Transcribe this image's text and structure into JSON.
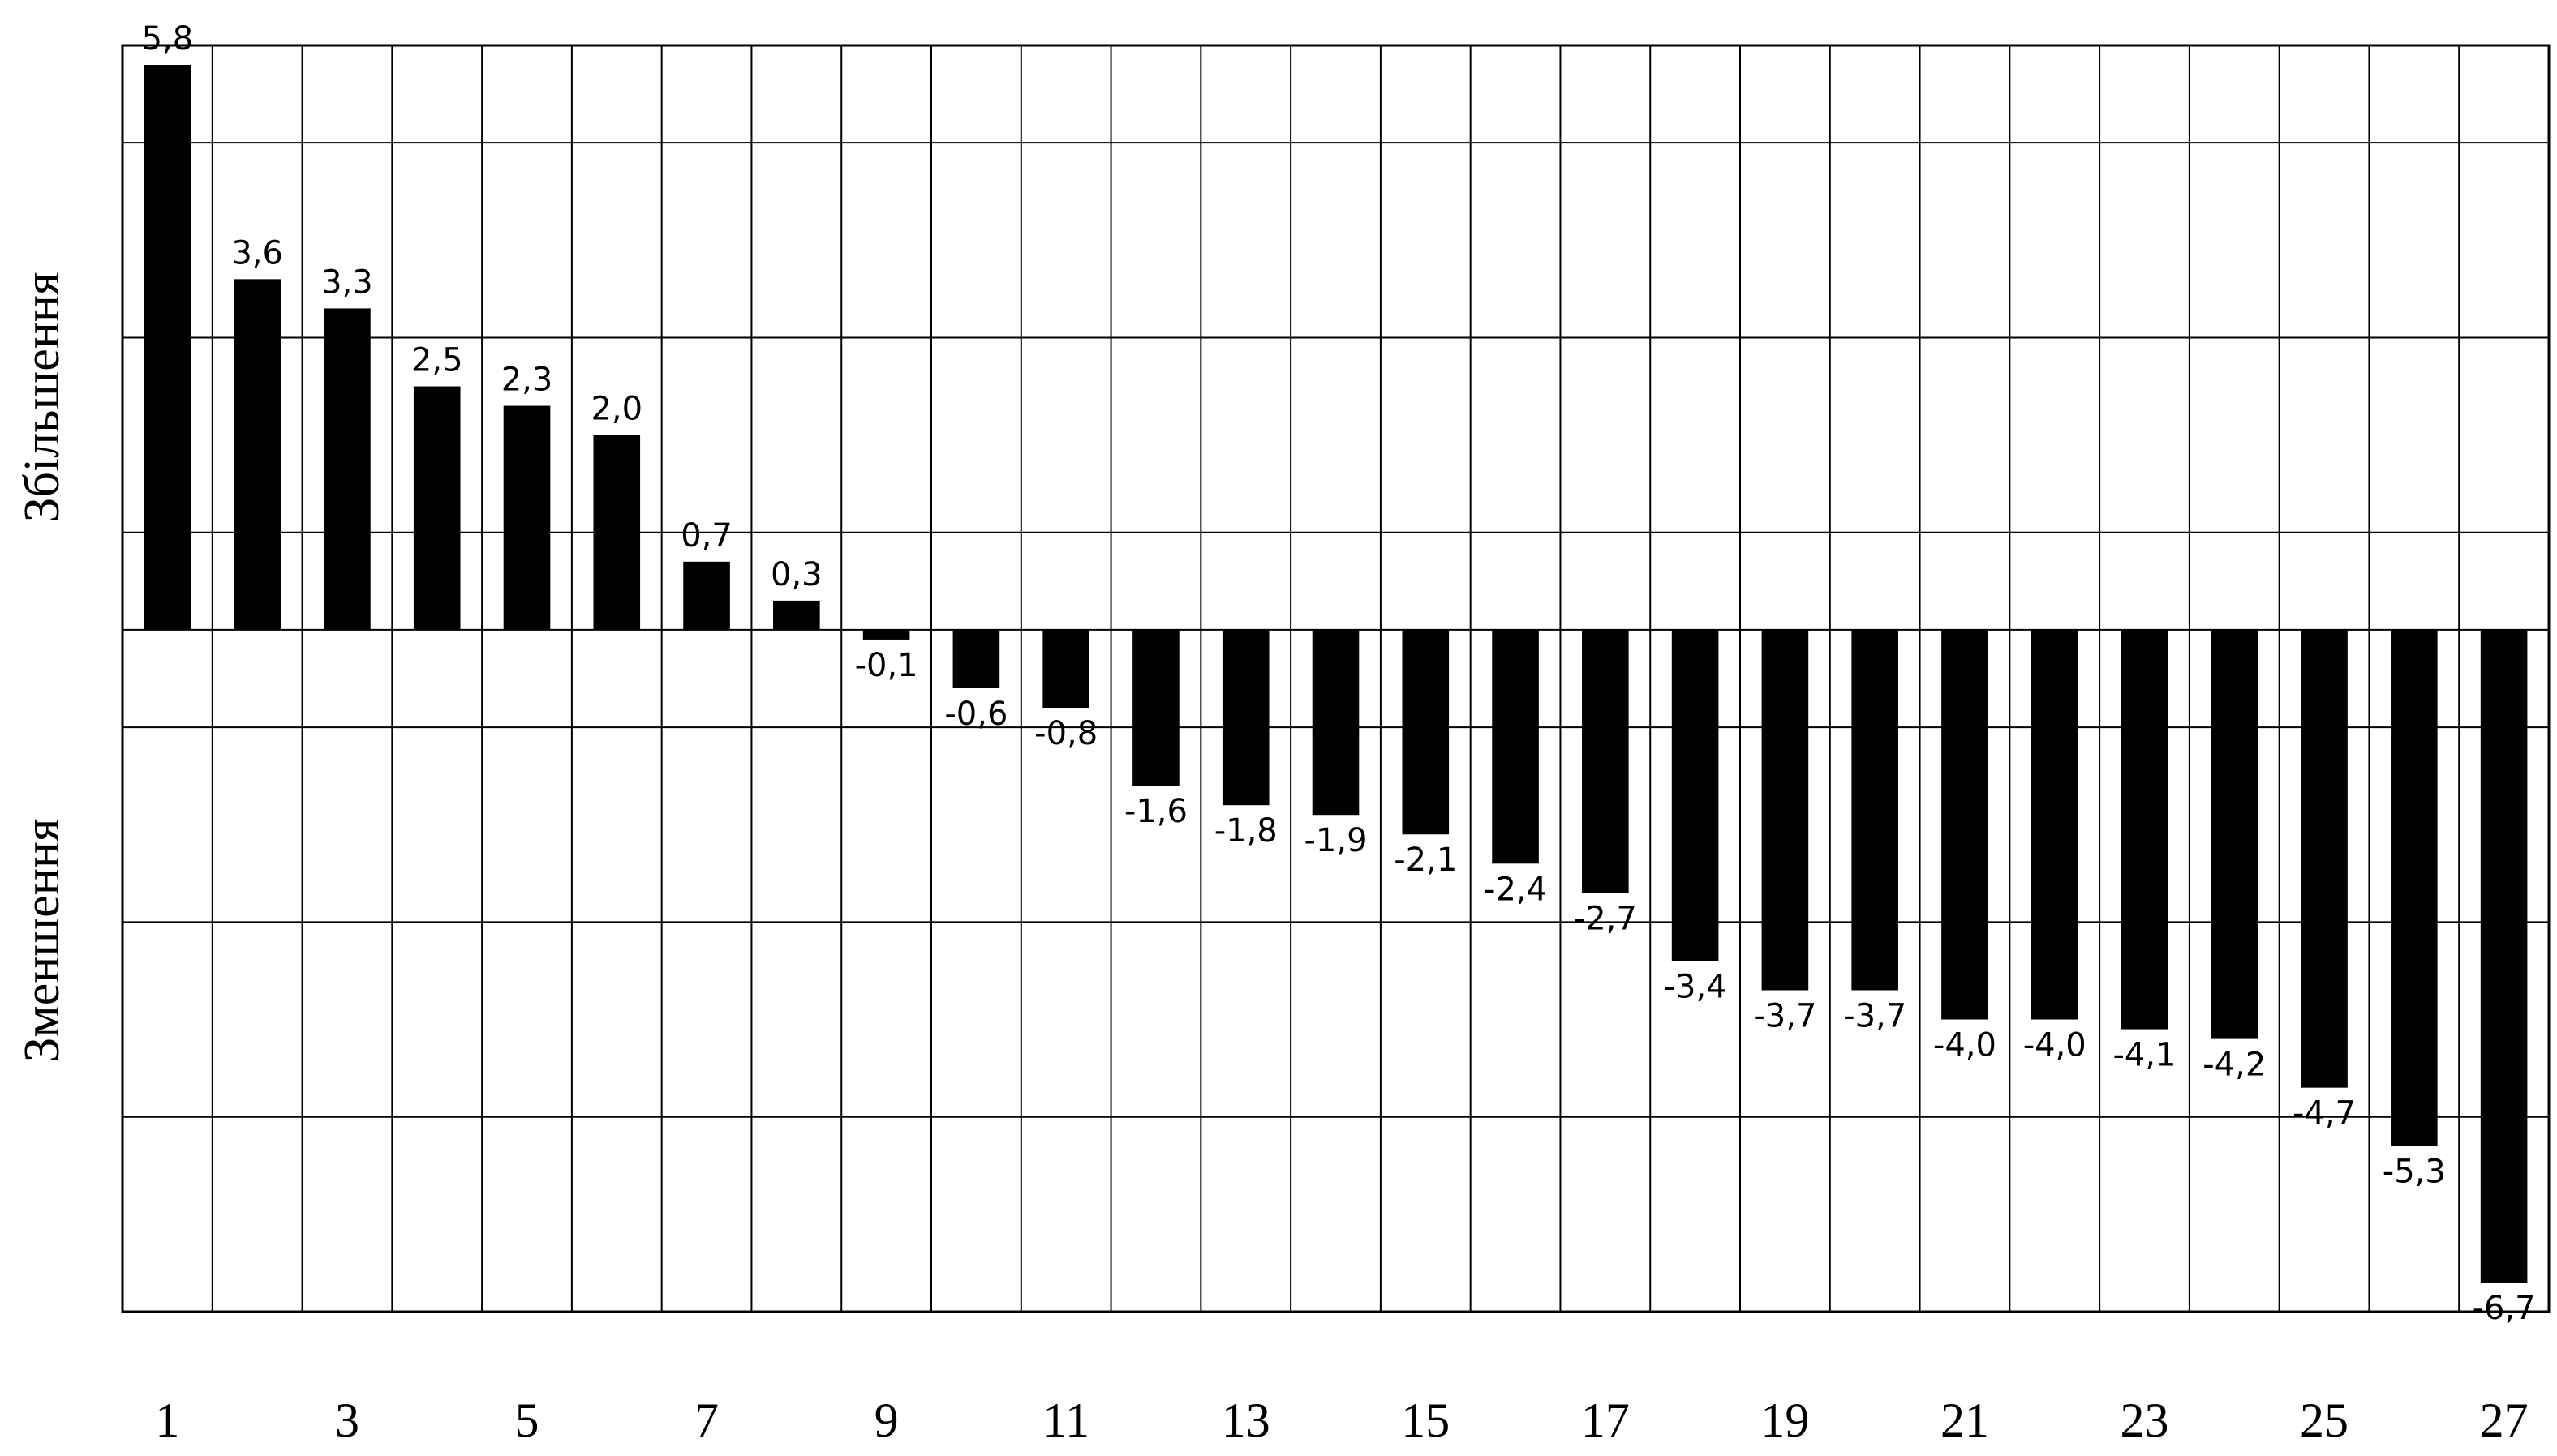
{
  "chart_data": {
    "type": "bar",
    "ylabel_positive": "Збільшення",
    "ylabel_negative": "Зменшення",
    "categories": [
      "1",
      null,
      "3",
      null,
      "5",
      null,
      "7",
      null,
      "9",
      null,
      "11",
      null,
      "13",
      null,
      "15",
      null,
      "17",
      null,
      "19",
      null,
      "21",
      null,
      "23",
      null,
      "25",
      null,
      "27"
    ],
    "values": [
      5.8,
      3.6,
      3.3,
      2.5,
      2.3,
      2.0,
      0.7,
      0.3,
      -0.1,
      -0.6,
      -0.8,
      -1.6,
      -1.8,
      -1.9,
      -2.1,
      -2.4,
      -2.7,
      -3.4,
      -3.7,
      -3.7,
      -4.0,
      -4.0,
      -4.1,
      -4.2,
      -4.7,
      -5.3,
      -6.7
    ],
    "value_labels": [
      "5,8",
      "3,6",
      "3,3",
      "2,5",
      "2,3",
      "2,0",
      "0,7",
      "0,3",
      "-0,1",
      "-0,6",
      "-0,8",
      "-1,6",
      "-1,8",
      "-1,9",
      "-2,1",
      "-2,4",
      "-2,7",
      "-3,4",
      "-3,7",
      "-3,7",
      "-4,0",
      "-4,0",
      "-4,1",
      "-4,2",
      "-4,7",
      "-5,3",
      "-6,7"
    ],
    "color": "#000000",
    "ylim": [
      -7,
      6
    ],
    "gridlines": [
      5,
      3,
      1,
      0,
      -1,
      -3,
      -5
    ],
    "grid": true
  }
}
